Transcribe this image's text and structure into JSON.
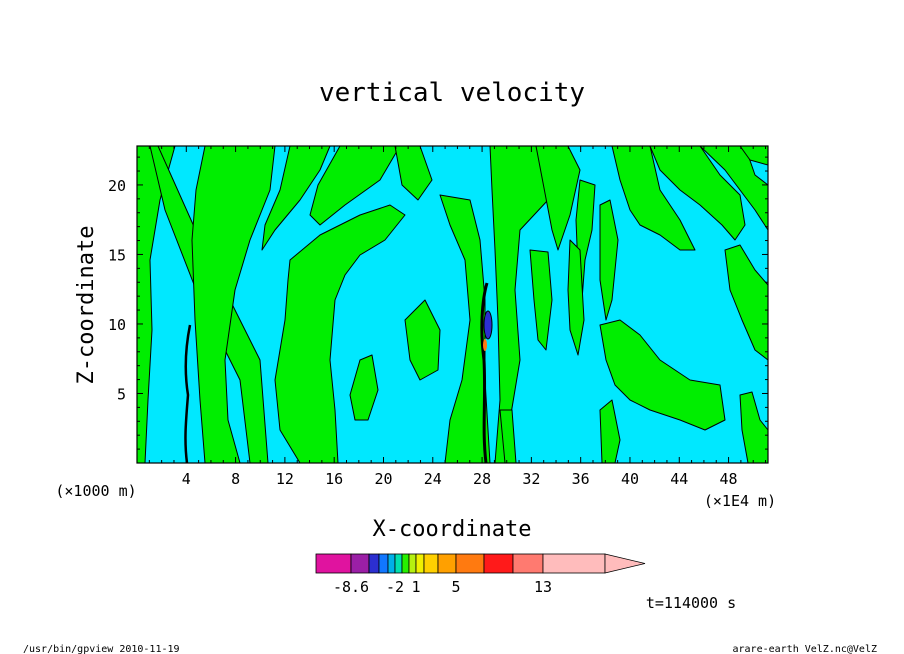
{
  "chart_data": {
    "type": "heatmap",
    "title": "vertical velocity",
    "xlabel": "X-coordinate",
    "ylabel": "Z-coordinate",
    "x_unit_left": "(×1000 m)",
    "x_unit_right": "(×1E4 m)",
    "x_ticks": [
      "4",
      "8",
      "12",
      "16",
      "20",
      "24",
      "28",
      "32",
      "36",
      "40",
      "44",
      "48"
    ],
    "y_ticks": [
      "5",
      "10",
      "15",
      "20"
    ],
    "xlim": [
      0,
      51200
    ],
    "ylim": [
      0,
      22800
    ],
    "colorbar": {
      "labels": [
        "-8.6",
        "-2",
        "1",
        "5",
        "13"
      ],
      "colors": [
        "#e0139f",
        "#9b1fa6",
        "#2c2fd0",
        "#1177ff",
        "#00b0e8",
        "#00e0b0",
        "#27f000",
        "#b5f010",
        "#f0f000",
        "#ffd000",
        "#ffa000",
        "#ff7a10",
        "#ff1a1a",
        "#ff7a70",
        "#ffbcbc"
      ]
    },
    "field_colors": {
      "background_negative": "#00e8ff",
      "positive": "#00ee00",
      "contour": "#000000"
    },
    "time_label": "t=114000 s"
  },
  "footer": {
    "left": "/usr/bin/gpview  2010-11-19",
    "right": "arare-earth_VelZ.nc@VelZ"
  }
}
